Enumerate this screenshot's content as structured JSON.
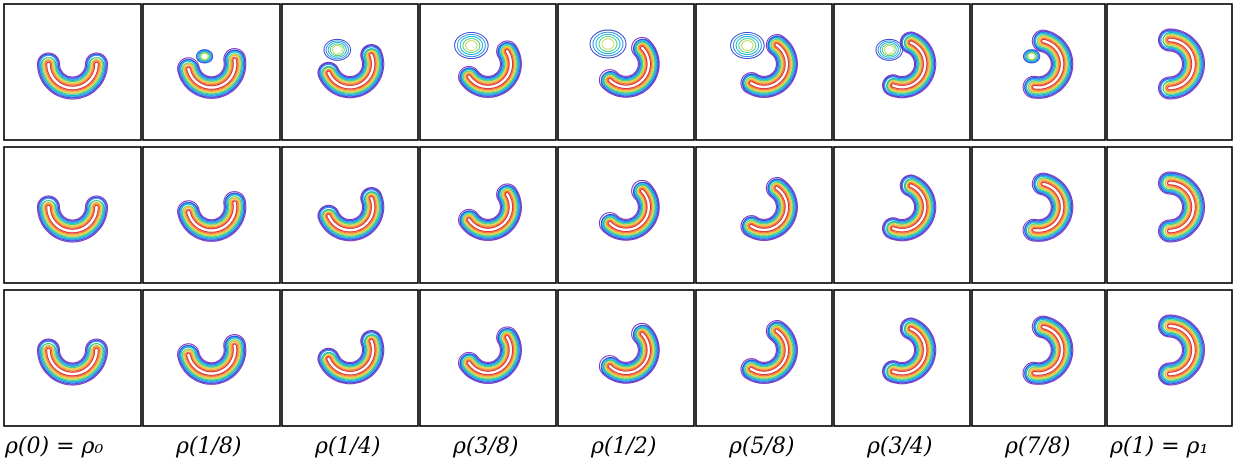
{
  "labels": [
    "ρ(0) = ρ₀",
    "ρ(1/8)",
    "ρ(1/4)",
    "ρ(3/8)",
    "ρ(1/2)",
    "ρ(5/8)",
    "ρ(3/4)",
    "ρ(7/8)",
    "ρ(1) = ρ₁"
  ],
  "rows": [
    {
      "name": "row-1",
      "fractions": [
        0,
        0.125,
        0.25,
        0.375,
        0.5,
        0.625,
        0.75,
        0.875,
        1
      ],
      "blur": 1
    },
    {
      "name": "row-2",
      "fractions": [
        0,
        0.125,
        0.25,
        0.375,
        0.5,
        0.625,
        0.75,
        0.875,
        1
      ],
      "blur": 0
    },
    {
      "name": "row-3",
      "fractions": [
        0,
        0.125,
        0.25,
        0.375,
        0.5,
        0.625,
        0.75,
        0.875,
        1
      ],
      "blur": 0
    }
  ],
  "contour_colors": [
    "#7b2cbf",
    "#2b3bd6",
    "#1e88e5",
    "#00b4d8",
    "#48c774",
    "#c6d84a",
    "#f5b22f",
    "#f26b2b",
    "#d62828"
  ]
}
